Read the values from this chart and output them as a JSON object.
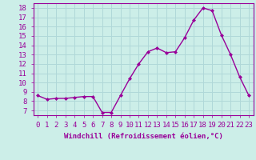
{
  "x": [
    0,
    1,
    2,
    3,
    4,
    5,
    6,
    7,
    8,
    9,
    10,
    11,
    12,
    13,
    14,
    15,
    16,
    17,
    18,
    19,
    20,
    21,
    22,
    23
  ],
  "y": [
    8.6,
    8.2,
    8.3,
    8.3,
    8.4,
    8.5,
    8.5,
    6.8,
    6.8,
    8.6,
    10.4,
    12.0,
    13.3,
    13.7,
    13.2,
    13.3,
    14.8,
    16.7,
    18.0,
    17.7,
    15.1,
    13.0,
    10.6,
    8.6
  ],
  "line_color": "#990099",
  "marker": "D",
  "marker_size": 2.0,
  "xlabel": "Windchill (Refroidissement éolien,°C)",
  "xlabel_fontsize": 6.5,
  "xtick_labels": [
    "0",
    "1",
    "2",
    "3",
    "4",
    "5",
    "6",
    "7",
    "8",
    "9",
    "10",
    "11",
    "12",
    "13",
    "14",
    "15",
    "16",
    "17",
    "18",
    "19",
    "20",
    "21",
    "22",
    "23"
  ],
  "yticks": [
    7,
    8,
    9,
    10,
    11,
    12,
    13,
    14,
    15,
    16,
    17,
    18
  ],
  "ylim": [
    6.5,
    18.5
  ],
  "xlim": [
    -0.5,
    23.5
  ],
  "bg_color": "#cceee8",
  "grid_color": "#b0d8d8",
  "tick_fontsize": 6.5,
  "line_width": 1.0
}
